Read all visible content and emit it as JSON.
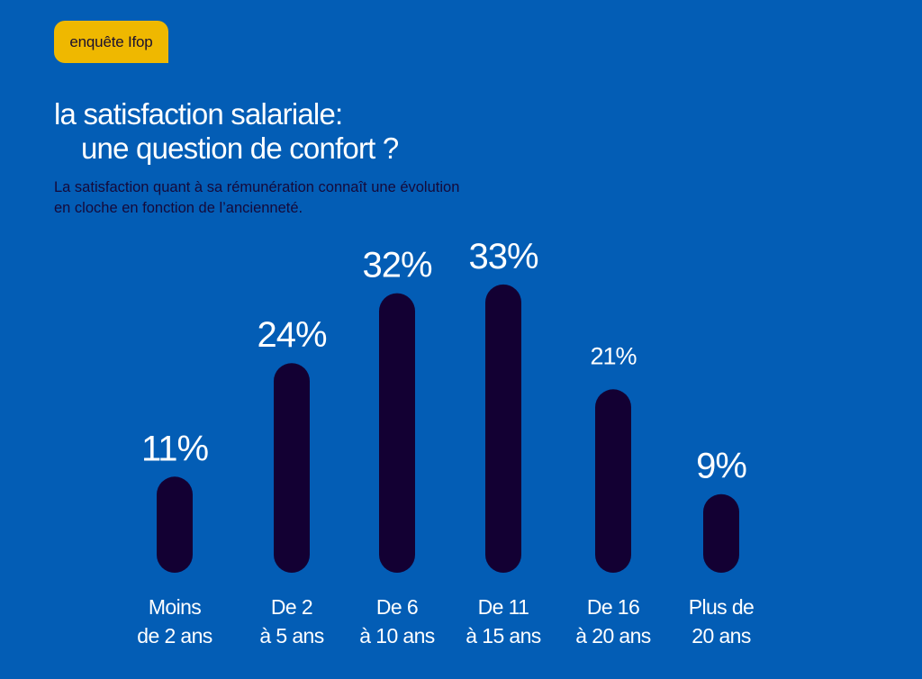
{
  "badge": {
    "label": "enquête Ifop"
  },
  "header": {
    "title_line1": "la satisfaction salariale:",
    "title_line2": "une question de confort ?",
    "subtitle_line1": "La satisfaction quant à sa rémunération connaît une évolution",
    "subtitle_line2": "en cloche en fonction de l’ancienneté."
  },
  "colors": {
    "background": "#035db5",
    "bar": "#130033",
    "badge": "#efb800",
    "text": "#ffffff"
  },
  "chart_data": {
    "type": "bar",
    "title": "la satisfaction salariale: une question de confort ?",
    "subtitle": "La satisfaction quant à sa rémunération connaît une évolution en cloche en fonction de l’ancienneté.",
    "xlabel": "",
    "ylabel": "",
    "unit": "%",
    "grid": false,
    "legend": "none",
    "ylim": [
      0,
      35
    ],
    "categories": [
      [
        "Moins",
        "de 2 ans"
      ],
      [
        "De 2",
        "à 5 ans"
      ],
      [
        "De 6",
        "à 10 ans"
      ],
      [
        "De 11",
        "à 15 ans"
      ],
      [
        "De 16",
        "à 20 ans"
      ],
      [
        "Plus de",
        "20 ans"
      ]
    ],
    "values": [
      11,
      24,
      32,
      33,
      21,
      9
    ],
    "data_labels": [
      "11%",
      "24%",
      "32%",
      "33%",
      "21%",
      "9%"
    ]
  }
}
